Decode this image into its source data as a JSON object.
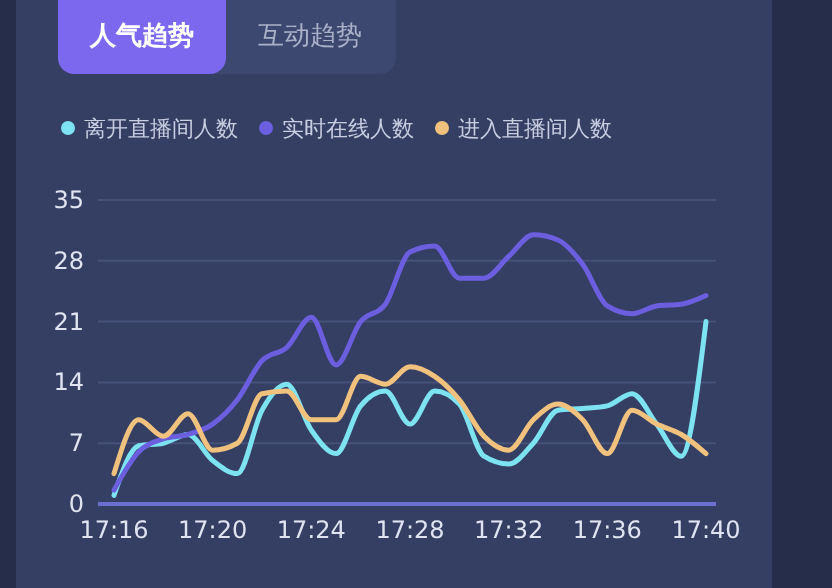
{
  "chart_data": {
    "type": "line",
    "annotations": [
      "人气趋势",
      "互动趋势"
    ],
    "categories": [
      "17:16",
      null,
      null,
      null,
      "17:20",
      null,
      null,
      null,
      "17:24",
      null,
      null,
      null,
      "17:28",
      null,
      null,
      null,
      "17:32",
      null,
      null,
      null,
      "17:36",
      null,
      null,
      null,
      "17:40"
    ],
    "series": [
      {
        "name": "离开直播间人数",
        "color": "#7de3f0",
        "values": [
          1,
          6.7,
          7,
          8,
          5,
          3.5,
          10.8,
          13.8,
          8.5,
          5.8,
          11.3,
          13,
          9.2,
          13,
          11.5,
          5.5,
          4.6,
          7,
          10.8,
          11,
          11.3,
          12.7,
          9.2,
          5.5,
          21
        ]
      },
      {
        "name": "实时在线人数",
        "color": "#6b5fe0",
        "values": [
          1.6,
          6,
          7.5,
          8,
          9.2,
          12,
          16.5,
          18,
          21.5,
          16,
          21,
          23,
          29,
          29.7,
          26,
          26,
          28.5,
          31,
          30.4,
          27.6,
          22.8,
          21.9,
          22.8,
          23,
          24
        ]
      },
      {
        "name": "进入直播间人数",
        "color": "#f0c27e",
        "values": [
          3.5,
          9.7,
          7.8,
          10.4,
          6.2,
          7,
          12.7,
          13,
          9.7,
          9.7,
          14.7,
          13.8,
          15.8,
          14.7,
          12,
          7.8,
          6.2,
          9.7,
          11.5,
          9.7,
          5.8,
          10.8,
          9.2,
          8,
          5.8
        ]
      }
    ],
    "ylim": [
      0,
      35
    ],
    "yticks": [
      0,
      7,
      14,
      21,
      28,
      35
    ],
    "grid": "y",
    "legend": "top left",
    "marker": "none",
    "line_style": "solid"
  }
}
